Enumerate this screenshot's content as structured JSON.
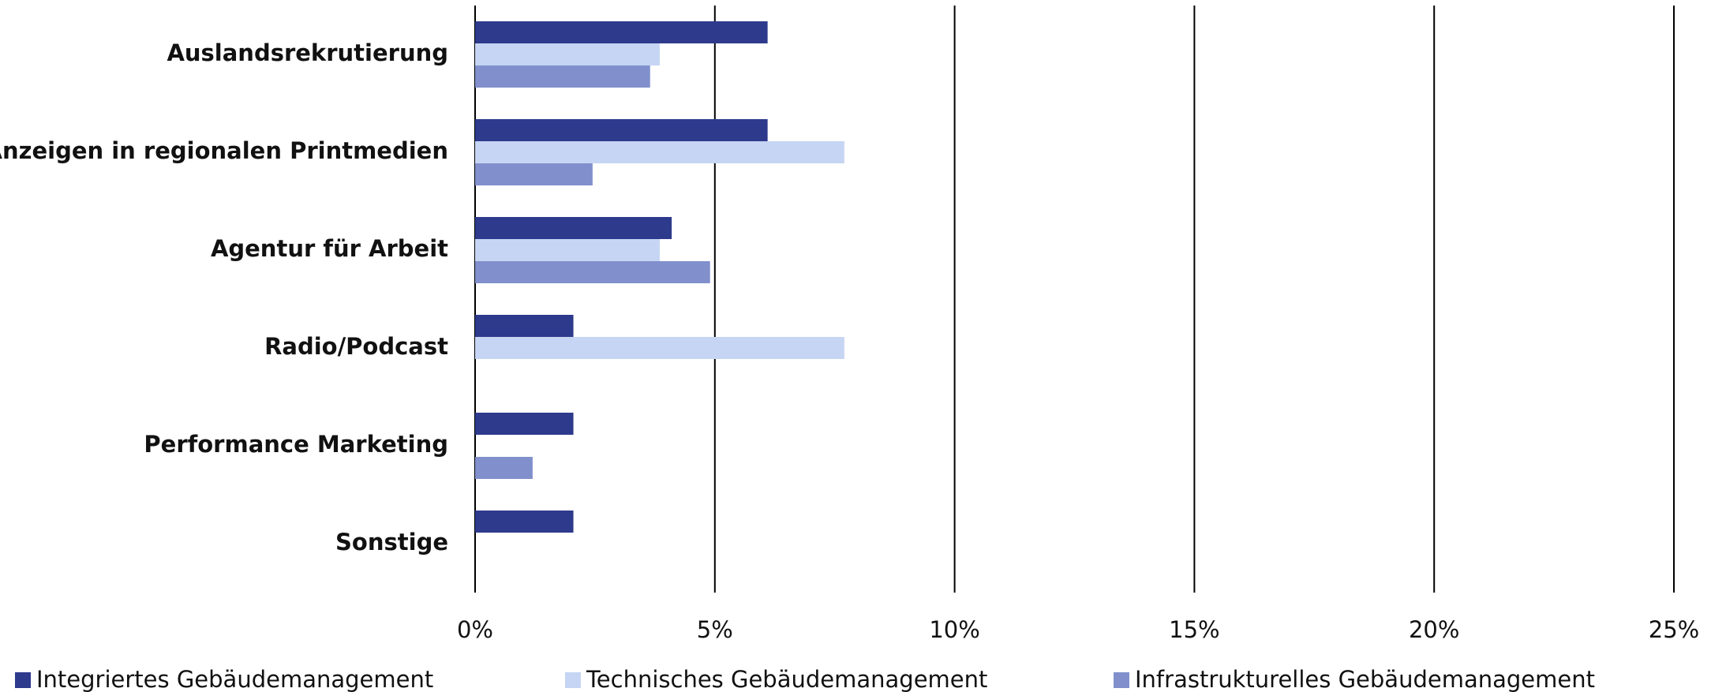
{
  "chart_data": {
    "type": "barh",
    "categories": [
      "Auslandsrekrutierung",
      "Anzeigen in regionalen Printmedien",
      "Agentur für Arbeit",
      "Radio/Podcast",
      "Performance Marketing",
      "Sonstige"
    ],
    "series": [
      {
        "name": "Integriertes Gebäudemanagement",
        "color": "#2e3a8c",
        "values": [
          6.1,
          6.1,
          4.1,
          2.05,
          2.05,
          2.05
        ]
      },
      {
        "name": "Technisches Gebäudemanagement",
        "color": "#c5d5f3",
        "values": [
          3.85,
          7.7,
          3.85,
          7.7,
          null,
          null
        ]
      },
      {
        "name": "Infrastrukturelles Gebäudemanagement",
        "color": "#8190cc",
        "values": [
          3.65,
          2.45,
          4.9,
          null,
          1.2,
          null
        ]
      }
    ],
    "xlim": [
      0,
      25
    ],
    "xticks": [
      {
        "value": 0,
        "label": "0%"
      },
      {
        "value": 5,
        "label": "5%"
      },
      {
        "value": 10,
        "label": "10%"
      },
      {
        "value": 15,
        "label": "15%"
      },
      {
        "value": 20,
        "label": "20%"
      },
      {
        "value": 25,
        "label": "25%"
      }
    ],
    "grid": true,
    "legend": "bottom"
  }
}
